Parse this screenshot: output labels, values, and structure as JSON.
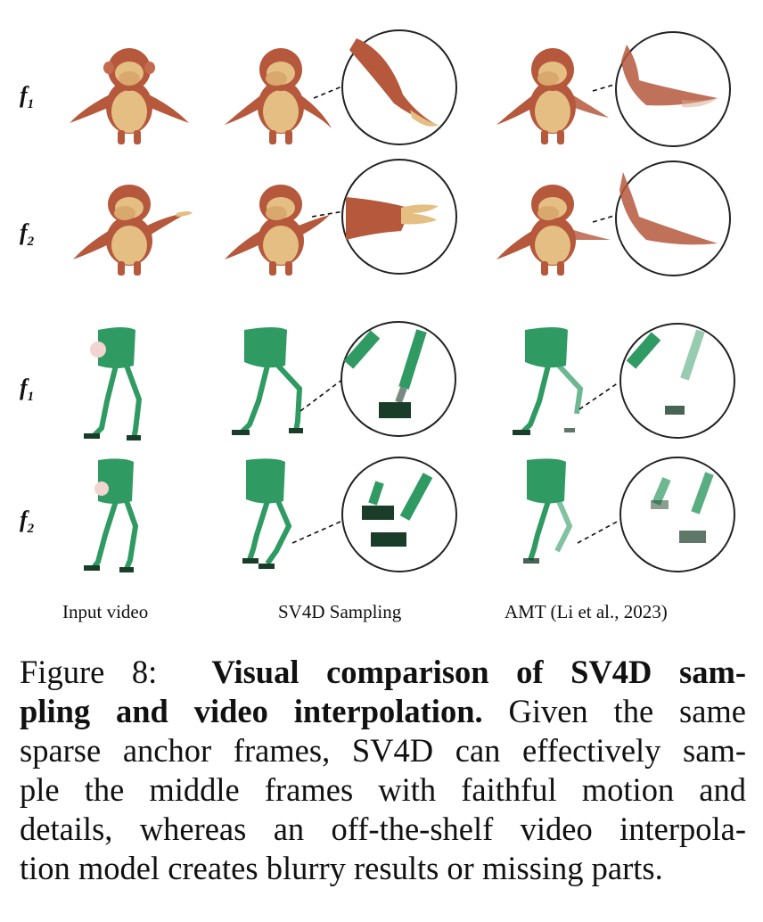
{
  "figure": {
    "row_labels": [
      {
        "letter": "f",
        "sub": "1"
      },
      {
        "letter": "f",
        "sub": "2"
      },
      {
        "letter": "f",
        "sub": "1"
      },
      {
        "letter": "f",
        "sub": "2"
      }
    ],
    "column_labels": [
      "Input video",
      "SV4D Sampling",
      "AMT (Li et al., 2023)"
    ],
    "colors": {
      "monkey_body": "#b5583c",
      "monkey_belly": "#e4be82",
      "robot_green": "#2f9a62",
      "robot_dark": "#1a3d2a"
    }
  },
  "caption": {
    "prefix": "Figure 8:",
    "bold_line1": "Visual comparison of SV4D sam-",
    "bold_line2": "pling and video interpolation.",
    "line2_rest": " Given the same",
    "line3": "sparse anchor frames, SV4D can effectively sam-",
    "line4": "ple the middle frames with faithful motion and",
    "line5": "details, whereas an off-the-shelf video interpola-",
    "line6": "tion model creates blurry results or missing parts."
  }
}
